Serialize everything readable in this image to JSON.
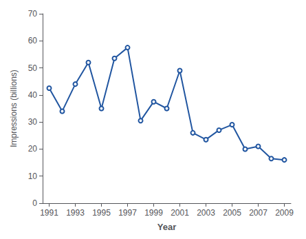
{
  "chart_data": {
    "type": "line",
    "x": [
      1991,
      1992,
      1993,
      1994,
      1995,
      1996,
      1997,
      1998,
      1999,
      2000,
      2001,
      2002,
      2003,
      2004,
      2005,
      2006,
      2007,
      2008,
      2009
    ],
    "values": [
      42.5,
      34.0,
      44.0,
      52.0,
      35.0,
      53.5,
      57.5,
      30.5,
      37.5,
      35.0,
      49.0,
      26.0,
      23.5,
      27.0,
      29.0,
      20.0,
      21.0,
      16.5,
      16.0
    ],
    "color": "#2055a0",
    "xlabel": "Year",
    "ylabel": "Impressions (billions)",
    "xlim": [
      1990.5,
      2009.5
    ],
    "ylim": [
      0,
      70
    ],
    "xticks": [
      1991,
      1993,
      1995,
      1997,
      1999,
      2001,
      2003,
      2005,
      2007,
      2009
    ],
    "yticks": [
      0,
      10,
      20,
      30,
      40,
      50,
      60,
      70
    ],
    "grid": false
  }
}
